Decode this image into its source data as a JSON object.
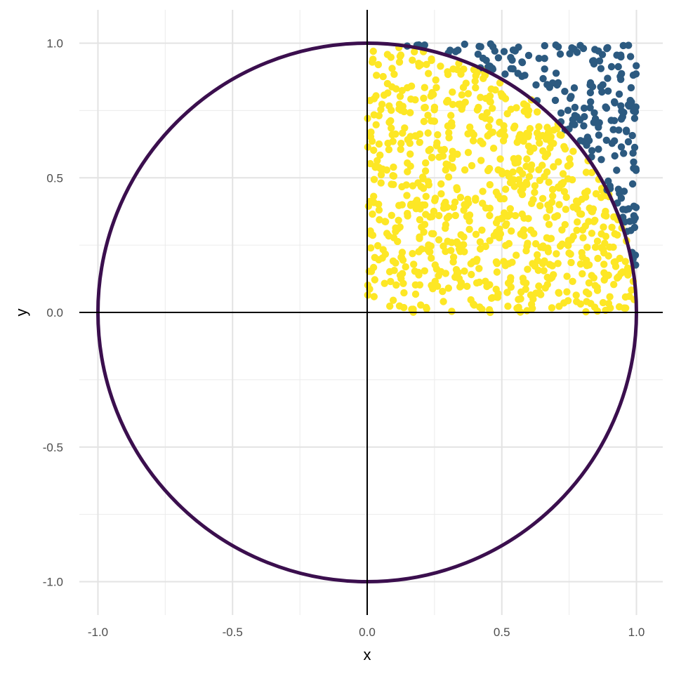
{
  "chart_data": {
    "type": "scatter",
    "title": "",
    "xlabel": "x",
    "ylabel": "y",
    "xlim": [
      -1.1,
      1.1
    ],
    "ylim": [
      -1.1,
      1.1
    ],
    "xticks": [
      -1.0,
      -0.5,
      0.0,
      0.5,
      1.0
    ],
    "yticks": [
      -1.0,
      -0.5,
      0.0,
      0.5,
      1.0
    ],
    "xtick_labels": [
      "-1.0",
      "-0.5",
      "0.0",
      "0.5",
      "1.0"
    ],
    "ytick_labels": [
      "-1.0",
      "-0.5",
      "0.0",
      "0.5",
      "1.0"
    ],
    "grid": true,
    "legend": "none",
    "reference_lines": {
      "x": 0,
      "y": 0,
      "color": "#000000"
    },
    "circle": {
      "center": [
        0,
        0
      ],
      "radius": 1,
      "color": "#3b0f4e"
    },
    "sampling_region": {
      "x": [
        0,
        1
      ],
      "y": [
        0,
        1
      ]
    },
    "series": [
      {
        "role": "inside unit circle (x^2 + y^2 <= 1)",
        "color": "#fde725",
        "points_approx": 790
      },
      {
        "role": "outside unit circle (x^2 + y^2 > 1)",
        "color": "#2c5a80",
        "points_approx": 210
      }
    ],
    "note": "Points are approximately 1000 uniform random samples in the unit square; exact coordinates cannot be read individually."
  }
}
